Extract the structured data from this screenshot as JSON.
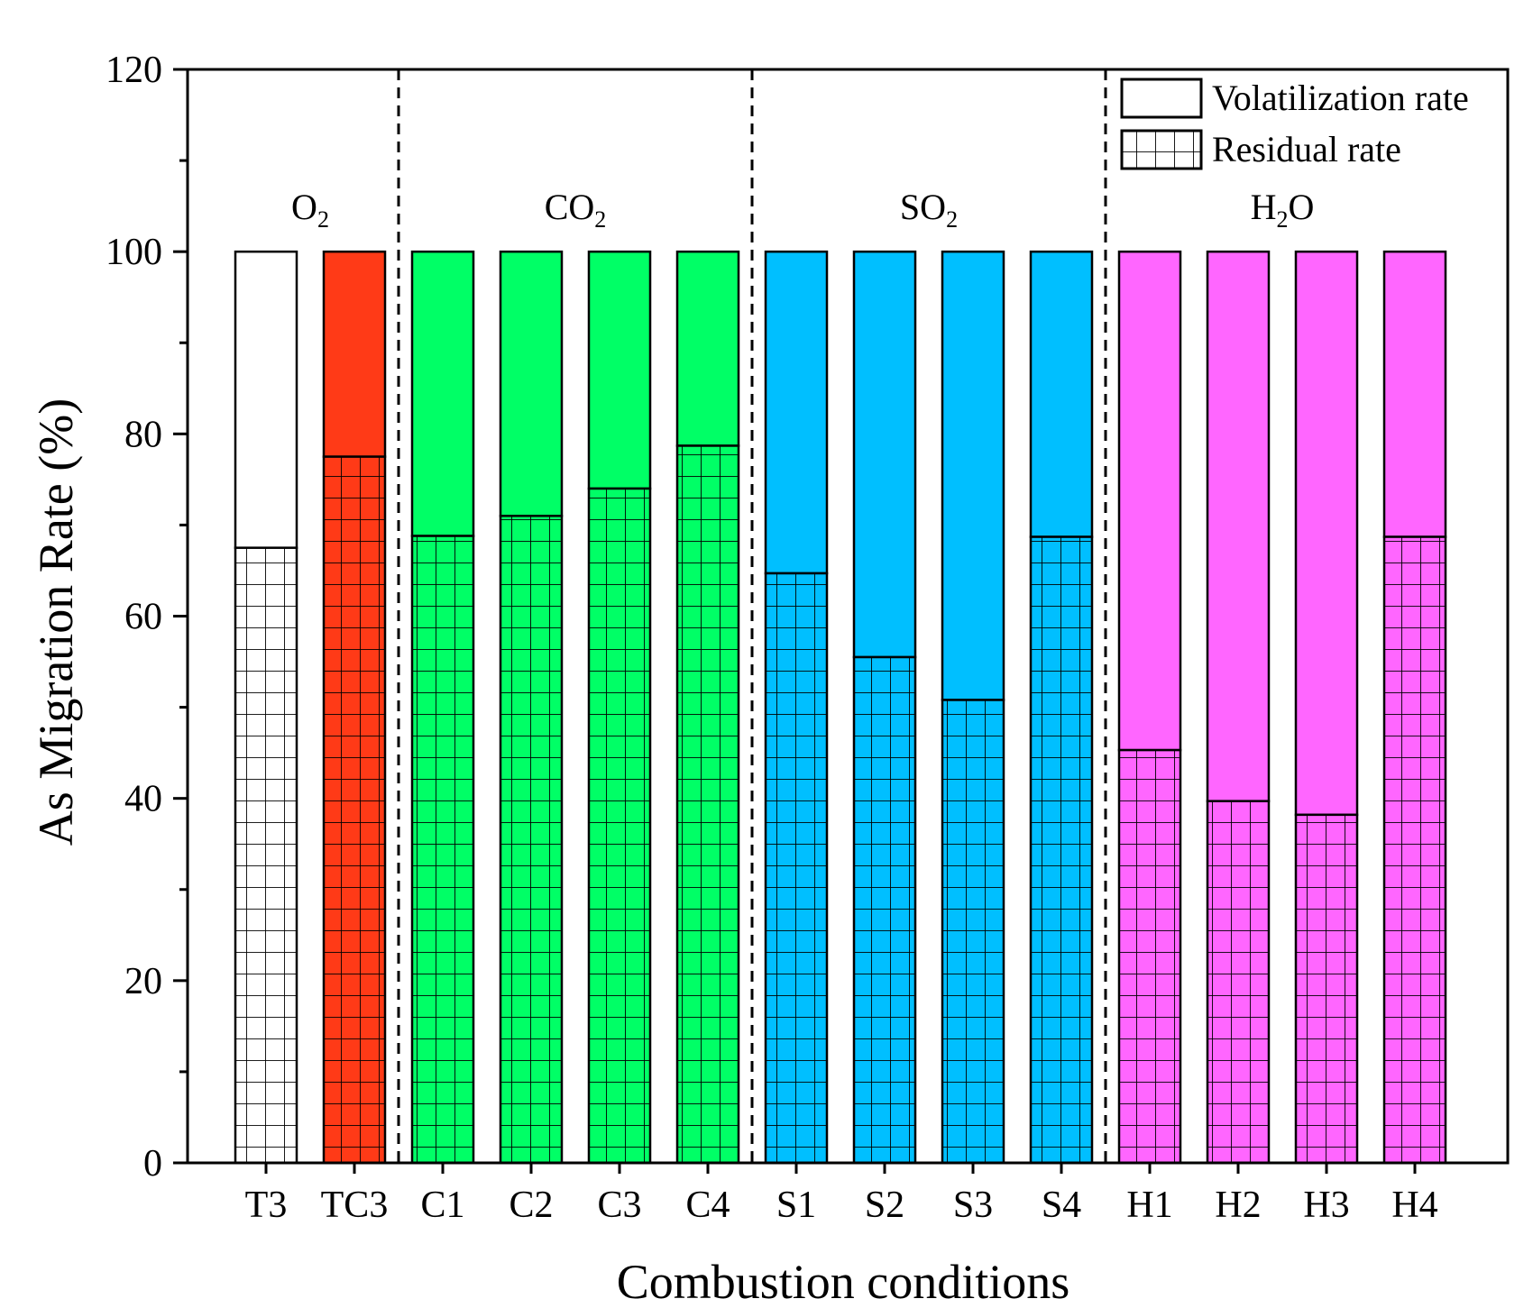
{
  "chart_data": {
    "type": "bar",
    "stacked": true,
    "title": "",
    "xlabel": "Combustion conditions",
    "ylabel": "As Migration Rate (%)",
    "ylim": [
      0,
      120
    ],
    "yticks": [
      0,
      20,
      40,
      60,
      80,
      100,
      120
    ],
    "categories": [
      "T3",
      "TC3",
      "C1",
      "C2",
      "C3",
      "C4",
      "S1",
      "S2",
      "S3",
      "S4",
      "H1",
      "H2",
      "H3",
      "H4"
    ],
    "series": [
      {
        "name": "Residual rate",
        "pattern": "grid",
        "values": [
          67.5,
          77.5,
          68.8,
          71.0,
          74.0,
          78.7,
          64.7,
          55.5,
          50.8,
          68.7,
          45.3,
          39.7,
          38.2,
          68.7
        ]
      },
      {
        "name": "Volatilization rate",
        "pattern": "solid",
        "values": [
          32.5,
          22.5,
          31.2,
          29.0,
          26.0,
          21.3,
          35.3,
          44.5,
          49.2,
          31.3,
          54.7,
          60.3,
          61.8,
          31.3
        ]
      }
    ],
    "bar_colors": [
      "#ffffff",
      "#ff3a17",
      "#00ff66",
      "#00ff66",
      "#00ff66",
      "#00ff66",
      "#00bfff",
      "#00bfff",
      "#00bfff",
      "#00bfff",
      "#ff66ff",
      "#ff66ff",
      "#ff66ff",
      "#ff66ff"
    ],
    "groups": [
      {
        "base": "O",
        "sub": "2",
        "tail": "",
        "first": 0,
        "last": 1
      },
      {
        "base": "CO",
        "sub": "2",
        "tail": "",
        "first": 2,
        "last": 5
      },
      {
        "base": "SO",
        "sub": "2",
        "tail": "",
        "first": 6,
        "last": 9
      },
      {
        "base": "H",
        "sub": "2",
        "tail": "O",
        "first": 10,
        "last": 13
      }
    ],
    "separators_after": [
      1,
      5,
      9
    ],
    "legend": {
      "position": "top-right",
      "entries": [
        {
          "label": "Volatilization rate",
          "pattern": "solid"
        },
        {
          "label": "Residual rate",
          "pattern": "grid"
        }
      ]
    }
  }
}
